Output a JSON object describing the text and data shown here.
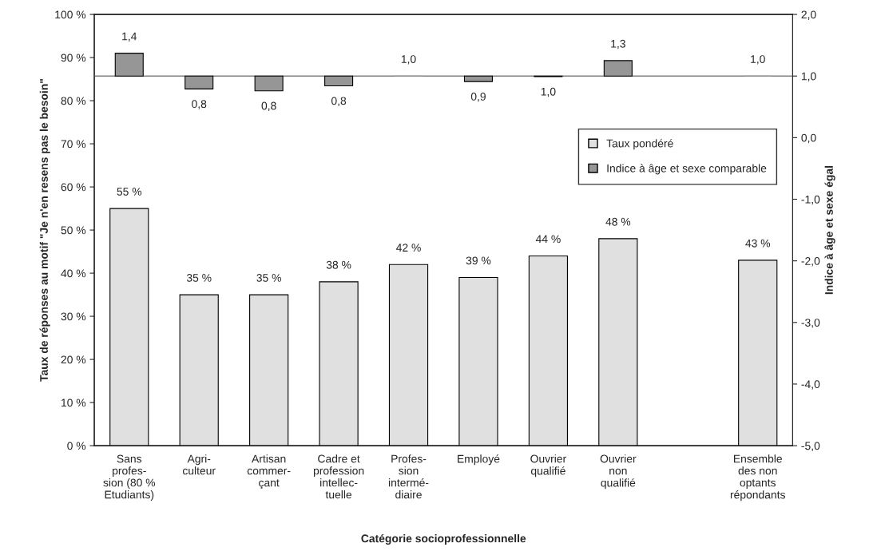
{
  "chart_data": {
    "type": "bar",
    "xlabel": "Catégorie socioprofessionnelle",
    "ylabel": "Taux de réponses au motif \"Je n'en resens pas le besoin\"",
    "y2label": "Indice à âge et sexe égal",
    "categories": [
      "Sans\nprofes-\nsion (80 %\nEtudiants)",
      "Agri-\nculteur",
      "Artisan\ncommer-\nçant",
      "Cadre et\nprofession\nintellec-\ntuelle",
      "Profes-\nsion\nintermé-\ndiaire",
      "Employé",
      "Ouvrier\nqualifié",
      "Ouvrier\nnon\nqualifié",
      null,
      "Ensemble\ndes non\noptants\nrépondants"
    ],
    "series": [
      {
        "name": "Taux pondéré",
        "color": "#e0e0e0",
        "values": [
          55,
          35,
          35,
          38,
          42,
          39,
          44,
          48,
          null,
          43
        ],
        "value_labels": [
          "55 %",
          "35 %",
          "35 %",
          "38 %",
          "42 %",
          "39 %",
          "44 %",
          "48 %",
          null,
          "43 %"
        ]
      },
      {
        "name": "Indice à âge et sexe comparable",
        "color": "#969696",
        "axis": "y2",
        "base": [
          1,
          1,
          1,
          1,
          1,
          1,
          1,
          1,
          null,
          1
        ],
        "values": [
          0.37,
          -0.21,
          -0.24,
          -0.16,
          0,
          -0.09,
          -0.01,
          0.25,
          null,
          0
        ],
        "value_labels": [
          "1,4",
          "0,8",
          "0,8",
          "0,8",
          "1,0",
          "0,9",
          "1,0",
          "1,3",
          null,
          "1,0"
        ]
      }
    ],
    "ylim": [
      0,
      100
    ],
    "yticks": [
      {
        "value": 0,
        "label": "0 %"
      },
      {
        "value": 10,
        "label": "10 %"
      },
      {
        "value": 20,
        "label": "20 %"
      },
      {
        "value": 30,
        "label": "30 %"
      },
      {
        "value": 40,
        "label": "40 %"
      },
      {
        "value": 50,
        "label": "50 %"
      },
      {
        "value": 60,
        "label": "60 %"
      },
      {
        "value": 70,
        "label": "70 %"
      },
      {
        "value": 80,
        "label": "80 %"
      },
      {
        "value": 90,
        "label": "90 %"
      },
      {
        "value": 100,
        "label": "100 %"
      }
    ],
    "y2lim": [
      -5,
      2
    ],
    "y2ticks": [
      {
        "value": -5,
        "label": "-5,0"
      },
      {
        "value": -4,
        "label": "-4,0"
      },
      {
        "value": -3,
        "label": "-3,0"
      },
      {
        "value": -2,
        "label": "-2,0"
      },
      {
        "value": -1,
        "label": "-1,0"
      },
      {
        "value": 0,
        "label": "0,0"
      },
      {
        "value": 1,
        "label": "1,0"
      },
      {
        "value": 2,
        "label": "2,0"
      }
    ],
    "ref_lines": [
      {
        "axis": "y2",
        "value": 1,
        "label": null,
        "color": "#808080"
      }
    ],
    "grid": false,
    "legend": "right"
  }
}
